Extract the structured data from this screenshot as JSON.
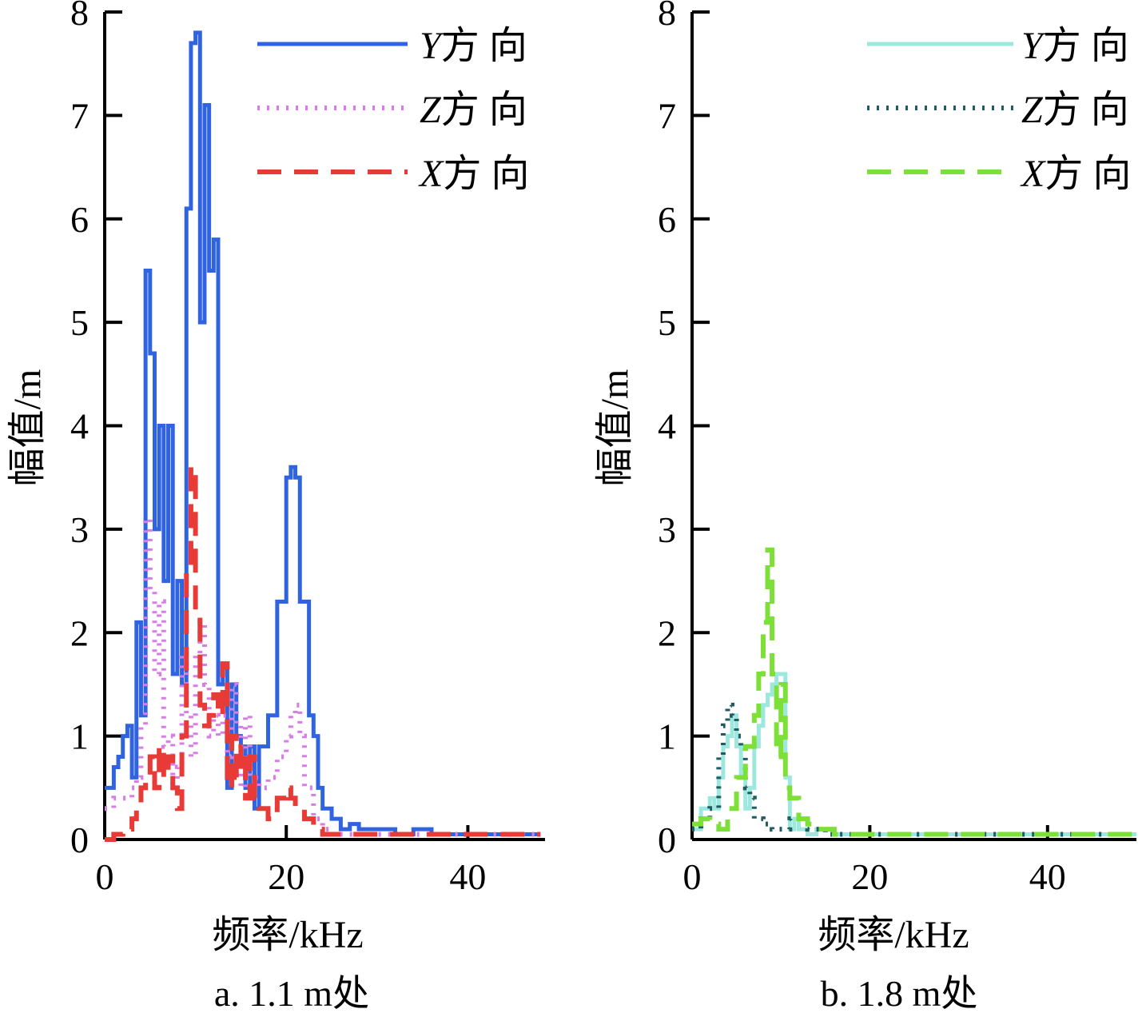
{
  "chart_data": [
    {
      "type": "line",
      "ylabel": "幅值/m",
      "xlabel": "频率/kHz",
      "caption": "a. 1.1 m处",
      "xlim": [
        0,
        48.5
      ],
      "ylim": [
        0,
        8
      ],
      "xticks": [
        0,
        20,
        40
      ],
      "yticks": [
        0,
        1,
        2,
        3,
        4,
        5,
        6,
        7,
        8
      ],
      "legend_position": "top-right",
      "series": [
        {
          "name_axis": "Y",
          "name_suffix": "方 向",
          "color": "#2f63e0",
          "style": "solid",
          "x": [
            0,
            1,
            1.5,
            2,
            2.5,
            3,
            3.5,
            4,
            4.5,
            5,
            5.5,
            6,
            6.5,
            7,
            7.5,
            8,
            8.5,
            9,
            9.5,
            10,
            10.5,
            11,
            11.5,
            12,
            12.5,
            13,
            13.5,
            14,
            14.5,
            15,
            15.5,
            16,
            16.5,
            17,
            18,
            19,
            20,
            20.5,
            21,
            21.5,
            22,
            22.5,
            23,
            23.5,
            24,
            25,
            26,
            27,
            28,
            30,
            32,
            34,
            36,
            38,
            40,
            42,
            44,
            46,
            48
          ],
          "y": [
            0.5,
            0.7,
            0.8,
            1.0,
            1.1,
            0.6,
            2.1,
            1.2,
            5.5,
            4.7,
            3.0,
            4.0,
            2.5,
            4.0,
            1.6,
            2.5,
            1.5,
            6.1,
            7.7,
            7.8,
            5.0,
            7.1,
            5.5,
            5.8,
            1.5,
            1.7,
            0.5,
            1.5,
            1.0,
            0.9,
            0.5,
            0.9,
            0.3,
            0.9,
            1.2,
            2.3,
            3.5,
            3.6,
            3.5,
            2.3,
            2.3,
            1.2,
            1.0,
            0.5,
            0.3,
            0.2,
            0.1,
            0.15,
            0.1,
            0.1,
            0.05,
            0.1,
            0.05,
            0.05,
            0.05,
            0.05,
            0.05,
            0.05,
            0.05
          ]
        },
        {
          "name_axis": "Z",
          "name_suffix": "方 向",
          "color": "#d77ee6",
          "style": "dotted",
          "x": [
            0,
            1,
            2,
            3,
            3.5,
            4,
            4.5,
            5,
            5.5,
            6,
            6.5,
            7,
            7.5,
            8,
            8.5,
            9,
            9.5,
            10,
            10.5,
            11,
            11.5,
            12,
            12.5,
            13,
            13.5,
            14,
            14.5,
            15,
            15.5,
            16,
            17,
            18,
            19,
            20,
            20.5,
            21,
            21.5,
            22,
            22.5,
            23,
            24,
            25,
            26,
            28,
            30,
            32,
            34,
            36,
            38,
            40,
            42,
            44,
            46,
            48
          ],
          "y": [
            0.3,
            0.4,
            0.4,
            0.5,
            0.6,
            1.1,
            3.1,
            2.4,
            1.6,
            2.3,
            0.9,
            1.0,
            0.5,
            0.7,
            1.8,
            1.2,
            0.8,
            1.8,
            2.1,
            1.5,
            1.0,
            1.2,
            1.0,
            1.2,
            0.8,
            1.5,
            1.1,
            0.5,
            1.2,
            0.6,
            0.5,
            0.6,
            0.8,
            1.0,
            1.2,
            1.3,
            1.0,
            0.5,
            0.5,
            0.2,
            0.1,
            0.05,
            0.05,
            0.05,
            0.05,
            0.05,
            0.05,
            0.05,
            0.05,
            0.05,
            0.05,
            0.05,
            0.05,
            0.05
          ]
        },
        {
          "name_axis": "X",
          "name_suffix": "方 向",
          "color": "#e83a36",
          "style": "dashed",
          "x": [
            0,
            1,
            2,
            3,
            3.5,
            4,
            4.5,
            5,
            5.5,
            6,
            6.5,
            7,
            7.5,
            8,
            8.5,
            9,
            9.5,
            10,
            10.5,
            11,
            11.5,
            12,
            12.5,
            13,
            13.5,
            14,
            14.5,
            15,
            15.5,
            16,
            16.5,
            17,
            18,
            19,
            20,
            20.5,
            21,
            22,
            23,
            24,
            25,
            26,
            28,
            30,
            32,
            34,
            36,
            38,
            40,
            42,
            44,
            46,
            48
          ],
          "y": [
            0.0,
            0.05,
            0.1,
            0.2,
            0.3,
            0.5,
            0.6,
            0.8,
            0.5,
            0.9,
            0.6,
            0.8,
            0.5,
            0.3,
            1.0,
            2.6,
            3.6,
            2.2,
            1.3,
            1.1,
            1.2,
            1.4,
            1.2,
            1.7,
            0.5,
            1.0,
            0.6,
            0.9,
            0.4,
            0.8,
            0.4,
            0.3,
            0.2,
            0.4,
            0.5,
            0.4,
            0.3,
            0.2,
            0.1,
            0.05,
            0.05,
            0.05,
            0.05,
            0.05,
            0.05,
            0.05,
            0.05,
            0.05,
            0.05,
            0.05,
            0.05,
            0.05,
            0.05
          ]
        }
      ]
    },
    {
      "type": "line",
      "ylabel": "幅值/m",
      "xlabel": "频率/kHz",
      "caption": "b. 1.8 m处",
      "xlim": [
        0,
        50
      ],
      "ylim": [
        0,
        8
      ],
      "xticks": [
        0,
        20,
        40
      ],
      "yticks": [
        0,
        1,
        2,
        3,
        4,
        5,
        6,
        7,
        8
      ],
      "legend_position": "top-right",
      "series": [
        {
          "name_axis": "Y",
          "name_suffix": "方 向",
          "color": "#9de8de",
          "style": "solid",
          "x": [
            0,
            1,
            2,
            2.5,
            3,
            3.5,
            4,
            4.5,
            5,
            5.5,
            6,
            6.5,
            7,
            7.5,
            8,
            8.5,
            9,
            9.5,
            10,
            10.5,
            11,
            11.5,
            12,
            13,
            14,
            16,
            18,
            20,
            25,
            30,
            35,
            40,
            45,
            50
          ],
          "y": [
            0.1,
            0.3,
            0.4,
            0.3,
            0.6,
            0.9,
            1.0,
            1.2,
            0.9,
            0.6,
            0.3,
            0.5,
            0.9,
            1.1,
            1.3,
            1.4,
            1.5,
            1.6,
            1.6,
            0.6,
            0.1,
            0.2,
            0.1,
            0.05,
            0.1,
            0.05,
            0.05,
            0.05,
            0.05,
            0.05,
            0.05,
            0.05,
            0.05,
            0.05
          ]
        },
        {
          "name_axis": "Z",
          "name_suffix": "方 向",
          "color": "#1f5d62",
          "style": "dotted",
          "x": [
            0,
            1,
            2,
            3,
            3.5,
            4,
            4.5,
            5,
            5.5,
            6,
            6.5,
            7,
            8,
            9,
            10,
            11,
            12,
            13,
            14,
            15,
            16,
            18,
            20,
            25,
            30,
            35,
            40,
            45,
            50
          ],
          "y": [
            0.1,
            0.2,
            0.3,
            0.8,
            1.1,
            1.3,
            1.2,
            1.0,
            0.9,
            0.5,
            0.4,
            0.2,
            0.15,
            0.1,
            0.1,
            0.2,
            0.2,
            0.1,
            0.1,
            0.05,
            0.05,
            0.05,
            0.05,
            0.05,
            0.05,
            0.05,
            0.05,
            0.05,
            0.05
          ]
        },
        {
          "name_axis": "X",
          "name_suffix": "方 向",
          "color": "#7de039",
          "style": "dashed",
          "x": [
            0,
            1,
            2,
            3,
            4,
            5,
            6,
            7,
            7.5,
            8,
            8.5,
            9,
            9.5,
            10,
            10.5,
            11,
            12,
            13,
            14,
            15,
            16,
            18,
            20,
            25,
            30,
            35,
            40,
            45,
            50
          ],
          "y": [
            0.15,
            0.2,
            0.15,
            0.1,
            0.3,
            0.6,
            0.9,
            1.2,
            1.6,
            2.1,
            2.8,
            1.6,
            0.8,
            1.5,
            0.5,
            0.4,
            0.2,
            0.15,
            0.1,
            0.1,
            0.05,
            0.05,
            0.05,
            0.05,
            0.05,
            0.05,
            0.05,
            0.05,
            0.05
          ]
        }
      ]
    }
  ]
}
